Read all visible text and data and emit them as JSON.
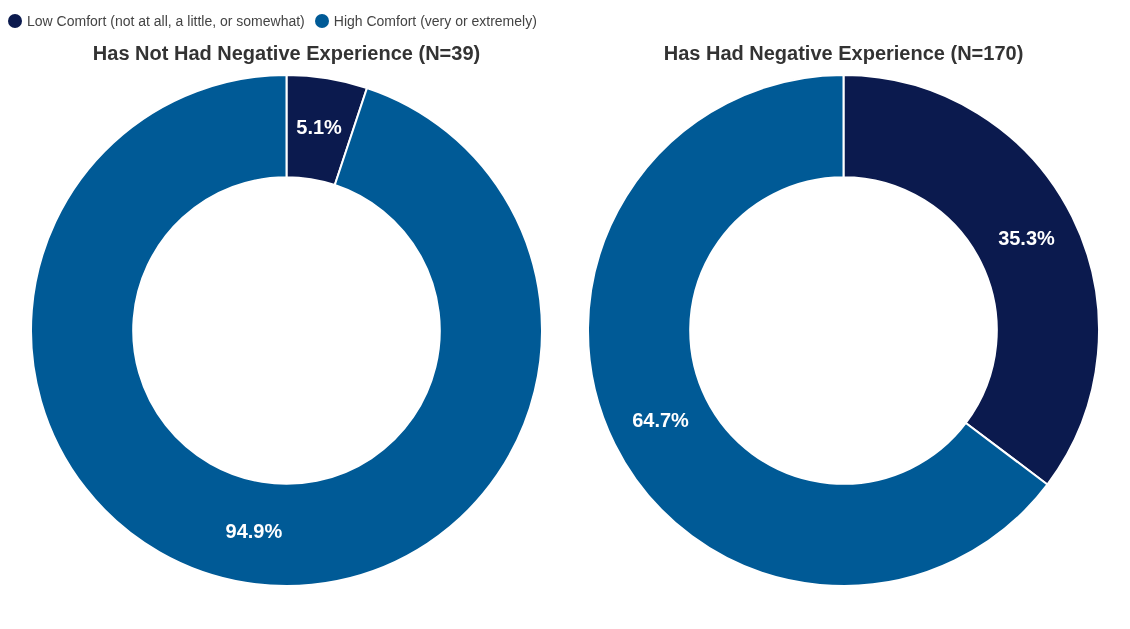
{
  "chart_data": [
    {
      "type": "donut",
      "title": "Has Not Had Negative Experience (N=39)",
      "categories": [
        "Low Comfort (not at all, a little, or somewhat)",
        "High Comfort (very or extremely)"
      ],
      "values": [
        5.1,
        94.9
      ],
      "value_labels": [
        "5.1%",
        "94.9%"
      ],
      "colors": [
        "#0b1a4e",
        "#005a96"
      ],
      "legend": "top left"
    },
    {
      "type": "donut",
      "title": "Has Had Negative Experience (N=170)",
      "categories": [
        null,
        null
      ],
      "values": [
        35.3,
        64.7
      ],
      "value_labels": [
        "35.3%",
        "64.7%"
      ],
      "colors": [
        "#0b1a4e",
        "#005a96"
      ]
    }
  ]
}
